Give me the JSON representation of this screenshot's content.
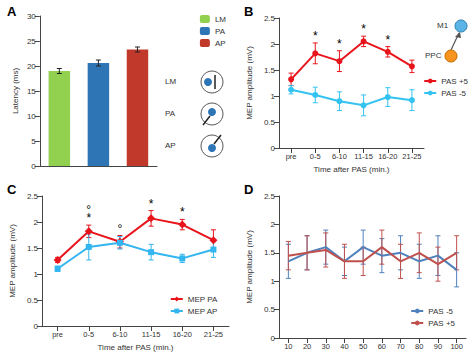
{
  "chart_data": [
    {
      "type": "bar",
      "title": "A",
      "ylabel": "Latency (ms)",
      "categories": [
        "LM",
        "PA",
        "AP"
      ],
      "values": [
        19.0,
        20.6,
        23.3
      ],
      "errors": [
        0.5,
        0.6,
        0.5
      ],
      "colors": [
        "#92d050",
        "#2e75b6",
        "#c0392b"
      ],
      "ylim": [
        0,
        30
      ],
      "yticks": [
        0,
        5,
        10,
        15,
        20,
        25,
        30
      ],
      "grid": false,
      "legend": "top-right",
      "tick_labels": "y",
      "annotations": [
        "LM",
        "PA",
        "AP"
      ]
    },
    {
      "type": "line",
      "title": "B",
      "xlabel": "Time after PAS (min.)",
      "ylabel": "MEP amplitude (mV)",
      "categories": [
        "pre",
        "0-5",
        "6-10",
        "11-15",
        "16-20",
        "21-25"
      ],
      "series": [
        {
          "name": "PAS +5",
          "color": "#e8141c",
          "marker": "circle",
          "values": [
            1.32,
            1.82,
            1.67,
            2.05,
            1.85,
            1.57
          ],
          "errors": [
            0.12,
            0.2,
            0.2,
            0.1,
            0.1,
            0.12
          ]
        },
        {
          "name": "PAS -5",
          "color": "#33c3f0",
          "marker": "circle",
          "values": [
            1.12,
            1.02,
            0.9,
            0.82,
            0.98,
            0.92
          ],
          "errors": [
            0.08,
            0.15,
            0.18,
            0.2,
            0.18,
            0.2
          ]
        }
      ],
      "ylim": [
        0,
        2.5
      ],
      "yticks": [
        0,
        0.5,
        1,
        1.5,
        2,
        2.5
      ],
      "grid": false,
      "legend": "right",
      "annotations": [
        {
          "category": "0-5",
          "text": "*"
        },
        {
          "category": "6-10",
          "text": "*"
        },
        {
          "category": "11-15",
          "text": "*"
        },
        {
          "category": "16-20",
          "text": "*"
        }
      ],
      "diagram_labels": [
        "M1",
        "PPC"
      ]
    },
    {
      "type": "line",
      "title": "C",
      "xlabel": "Time after PAS (min.)",
      "ylabel": "MEP amplitude (mV)",
      "categories": [
        "pre",
        "0-5",
        "6-10",
        "11-15",
        "16-20",
        "21-25"
      ],
      "series": [
        {
          "name": "MEP PA",
          "color": "#e8141c",
          "marker": "diamond",
          "values": [
            1.27,
            1.82,
            1.62,
            2.07,
            1.95,
            1.65
          ],
          "errors": [
            0.05,
            0.12,
            0.12,
            0.15,
            0.1,
            0.2
          ]
        },
        {
          "name": "MEP AP",
          "color": "#33b5f0",
          "marker": "square",
          "values": [
            1.1,
            1.52,
            1.6,
            1.42,
            1.3,
            1.47
          ],
          "errors": [
            0.05,
            0.25,
            0.12,
            0.15,
            0.08,
            0.15
          ]
        }
      ],
      "ylim": [
        0,
        2.5
      ],
      "yticks": [
        0,
        0.5,
        1,
        1.5,
        2,
        2.5
      ],
      "grid": false,
      "legend": "bottom-right",
      "annotations": [
        {
          "category": "0-5",
          "text": "*"
        },
        {
          "category": "0-5",
          "text": "°"
        },
        {
          "category": "6-10",
          "text": "°"
        },
        {
          "category": "11-15",
          "text": "*"
        },
        {
          "category": "16-20",
          "text": "*"
        }
      ]
    },
    {
      "type": "line",
      "title": "D",
      "ylabel": "MEP amplitude (mV)",
      "x": [
        10,
        20,
        30,
        40,
        50,
        60,
        70,
        80,
        90,
        100
      ],
      "series": [
        {
          "name": "PAS -5",
          "color": "#4f81bd",
          "marker": "none",
          "values": [
            1.35,
            1.5,
            1.6,
            1.35,
            1.6,
            1.45,
            1.5,
            1.35,
            1.45,
            1.2
          ],
          "errors": [
            0.3,
            0.3,
            0.3,
            0.25,
            0.3,
            0.3,
            0.3,
            0.3,
            0.35,
            0.3
          ]
        },
        {
          "name": "PAS +5",
          "color": "#c0504d",
          "marker": "none",
          "values": [
            1.45,
            1.5,
            1.55,
            1.35,
            1.35,
            1.6,
            1.35,
            1.5,
            1.3,
            1.5
          ],
          "errors": [
            0.25,
            0.3,
            0.3,
            0.3,
            0.25,
            0.3,
            0.3,
            0.35,
            0.3,
            0.3
          ]
        }
      ],
      "xlim": [
        5,
        105
      ],
      "xticks": [
        10,
        20,
        30,
        40,
        50,
        60,
        70,
        80,
        90,
        100
      ],
      "ylim": [
        0,
        2.5
      ],
      "yticks": [
        0,
        0.5,
        1,
        1.5,
        2,
        2.5
      ],
      "grid": false,
      "legend": "bottom-right"
    }
  ]
}
